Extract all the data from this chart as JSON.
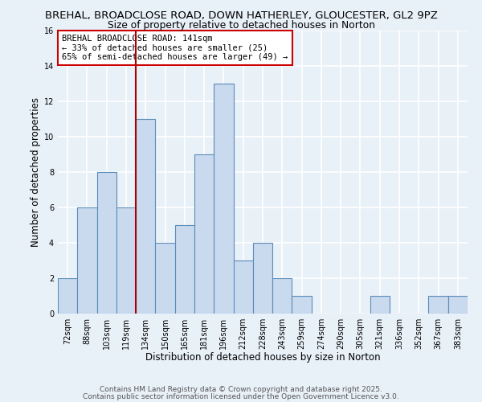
{
  "title_line1": "BREHAL, BROADCLOSE ROAD, DOWN HATHERLEY, GLOUCESTER, GL2 9PZ",
  "title_line2": "Size of property relative to detached houses in Norton",
  "xlabel": "Distribution of detached houses by size in Norton",
  "ylabel": "Number of detached properties",
  "categories": [
    "72sqm",
    "88sqm",
    "103sqm",
    "119sqm",
    "134sqm",
    "150sqm",
    "165sqm",
    "181sqm",
    "196sqm",
    "212sqm",
    "228sqm",
    "243sqm",
    "259sqm",
    "274sqm",
    "290sqm",
    "305sqm",
    "321sqm",
    "336sqm",
    "352sqm",
    "367sqm",
    "383sqm"
  ],
  "values": [
    2,
    6,
    8,
    6,
    11,
    4,
    5,
    9,
    13,
    3,
    4,
    2,
    1,
    0,
    0,
    0,
    1,
    0,
    0,
    1,
    1
  ],
  "bar_color": "#c9d9ee",
  "bar_edge_color": "#5b8db8",
  "background_color": "#e8f0f8",
  "grid_color": "#ffffff",
  "vline_x": 3.5,
  "vline_color": "#aa0000",
  "ylim": [
    0,
    16
  ],
  "yticks": [
    0,
    2,
    4,
    6,
    8,
    10,
    12,
    14,
    16
  ],
  "annotation_title": "BREHAL BROADCLOSE ROAD: 141sqm",
  "annotation_line2": "← 33% of detached houses are smaller (25)",
  "annotation_line3": "65% of semi-detached houses are larger (49) →",
  "footer_line1": "Contains HM Land Registry data © Crown copyright and database right 2025.",
  "footer_line2": "Contains public sector information licensed under the Open Government Licence v3.0.",
  "title_fontsize": 9.5,
  "subtitle_fontsize": 8.8,
  "xlabel_fontsize": 8.5,
  "ylabel_fontsize": 8.5,
  "tick_fontsize": 7,
  "annotation_fontsize": 7.5,
  "footer_fontsize": 6.5
}
